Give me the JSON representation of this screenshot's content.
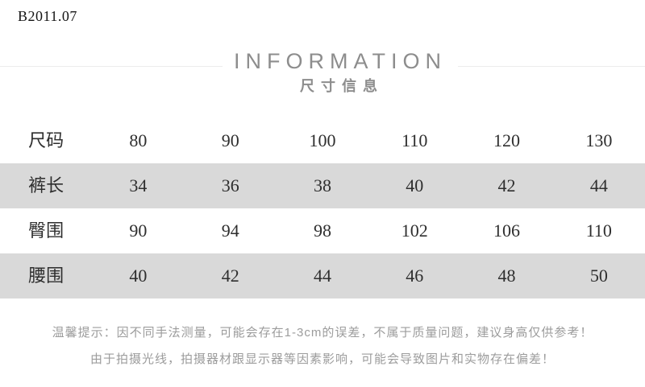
{
  "page": {
    "product_code": "B2011.07"
  },
  "header": {
    "title_en": "INFORMATION",
    "title_zh": "尺寸信息"
  },
  "size_table": {
    "rows": [
      {
        "label": "尺码",
        "values": [
          "80",
          "90",
          "100",
          "110",
          "120",
          "130"
        ],
        "shaded": false
      },
      {
        "label": "裤长",
        "values": [
          "34",
          "36",
          "38",
          "40",
          "42",
          "44"
        ],
        "shaded": true
      },
      {
        "label": "臀围",
        "values": [
          "90",
          "94",
          "98",
          "102",
          "106",
          "110"
        ],
        "shaded": false
      },
      {
        "label": "腰围",
        "values": [
          "40",
          "42",
          "44",
          "46",
          "48",
          "50"
        ],
        "shaded": true
      }
    ]
  },
  "tips": {
    "line1": "温馨提示：因不同手法测量，可能会存在1-3cm的误差，不属于质量问题，建议身高仅供参考！",
    "line2": "由于拍摄光线，拍摄器材跟显示器等因素影响，可能会导致图片和实物存在偏差！"
  },
  "colors": {
    "shaded_row": "#d9d9d9",
    "table_text": "#2e2e2e",
    "heading_text": "#8d8d8d",
    "tips_text": "#9c9c9c",
    "divider": "#ececec"
  },
  "chart_data": {
    "type": "table",
    "title": "INFORMATION 尺寸信息",
    "header_row": {
      "label": "尺码",
      "values": [
        80,
        90,
        100,
        110,
        120,
        130
      ]
    },
    "rows": [
      {
        "label": "裤长",
        "values": [
          34,
          36,
          38,
          40,
          42,
          44
        ]
      },
      {
        "label": "臀围",
        "values": [
          90,
          94,
          98,
          102,
          106,
          110
        ]
      },
      {
        "label": "腰围",
        "values": [
          40,
          42,
          44,
          46,
          48,
          50
        ]
      }
    ],
    "notes": [
      "温馨提示：因不同手法测量，可能会存在1-3cm的误差，不属于质量问题，建议身高仅供参考！",
      "由于拍摄光线，拍摄器材跟显示器等因素影响，可能会导致图片和实物存在偏差！"
    ]
  }
}
